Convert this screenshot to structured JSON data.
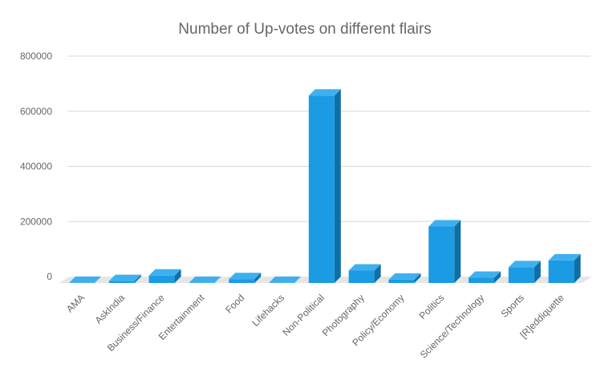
{
  "chart_data": {
    "type": "bar",
    "title": "Number of Up-votes on different flairs",
    "xlabel": "",
    "ylabel": "",
    "categories": [
      "AMA",
      "AskIndia",
      "Business/Finance",
      "Entertainment",
      "Food",
      "Lifehacks",
      "Non-Political",
      "Photography",
      "Policy/Economy",
      "Politics",
      "Science/Technology",
      "Sports",
      "[R]eddiquette"
    ],
    "values": [
      500,
      7000,
      27000,
      500,
      14000,
      500,
      680000,
      45000,
      12000,
      205000,
      19000,
      57000,
      82000
    ],
    "ylim": [
      0,
      800000
    ],
    "yticks": [
      0,
      200000,
      400000,
      600000,
      800000
    ],
    "grid": true,
    "legend": "none",
    "style": "3d-column",
    "colors": {
      "bar_front": "#1a9be3",
      "bar_top": "#3fb0ee",
      "bar_side": "#0e6fa6",
      "floor": "#e6e6e6",
      "grid": "#d9d9d9",
      "text": "#666666"
    }
  }
}
